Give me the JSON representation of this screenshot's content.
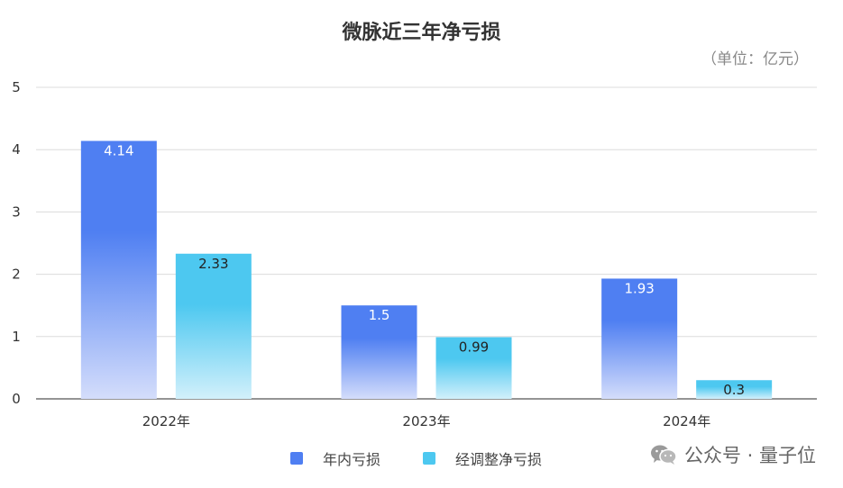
{
  "title": "微脉近三年净亏损",
  "unit": "（单位：亿元）",
  "watermark": "公众号 · 量子位",
  "colors": {
    "series1_top": "#4f7ff2",
    "series1_bottom": "#d4ddfb",
    "series2_top": "#4dc8f0",
    "series2_bottom": "#d2f0fb",
    "grid": "#dcdcdc",
    "axis": "#555555"
  },
  "chart_data": {
    "type": "bar",
    "categories": [
      "2022年",
      "2023年",
      "2024年"
    ],
    "series": [
      {
        "name": "年内亏损",
        "values": [
          4.14,
          1.5,
          1.93
        ],
        "labels": [
          "4.14",
          "1.5",
          "1.93"
        ]
      },
      {
        "name": "经调整净亏损",
        "values": [
          2.33,
          0.99,
          0.3
        ],
        "labels": [
          "2.33",
          "0.99",
          "0.3"
        ]
      }
    ],
    "ylim": [
      0,
      5
    ],
    "yticks": [
      "0",
      "1",
      "2",
      "3",
      "4",
      "5"
    ],
    "grid": true,
    "legend": "bottom"
  }
}
